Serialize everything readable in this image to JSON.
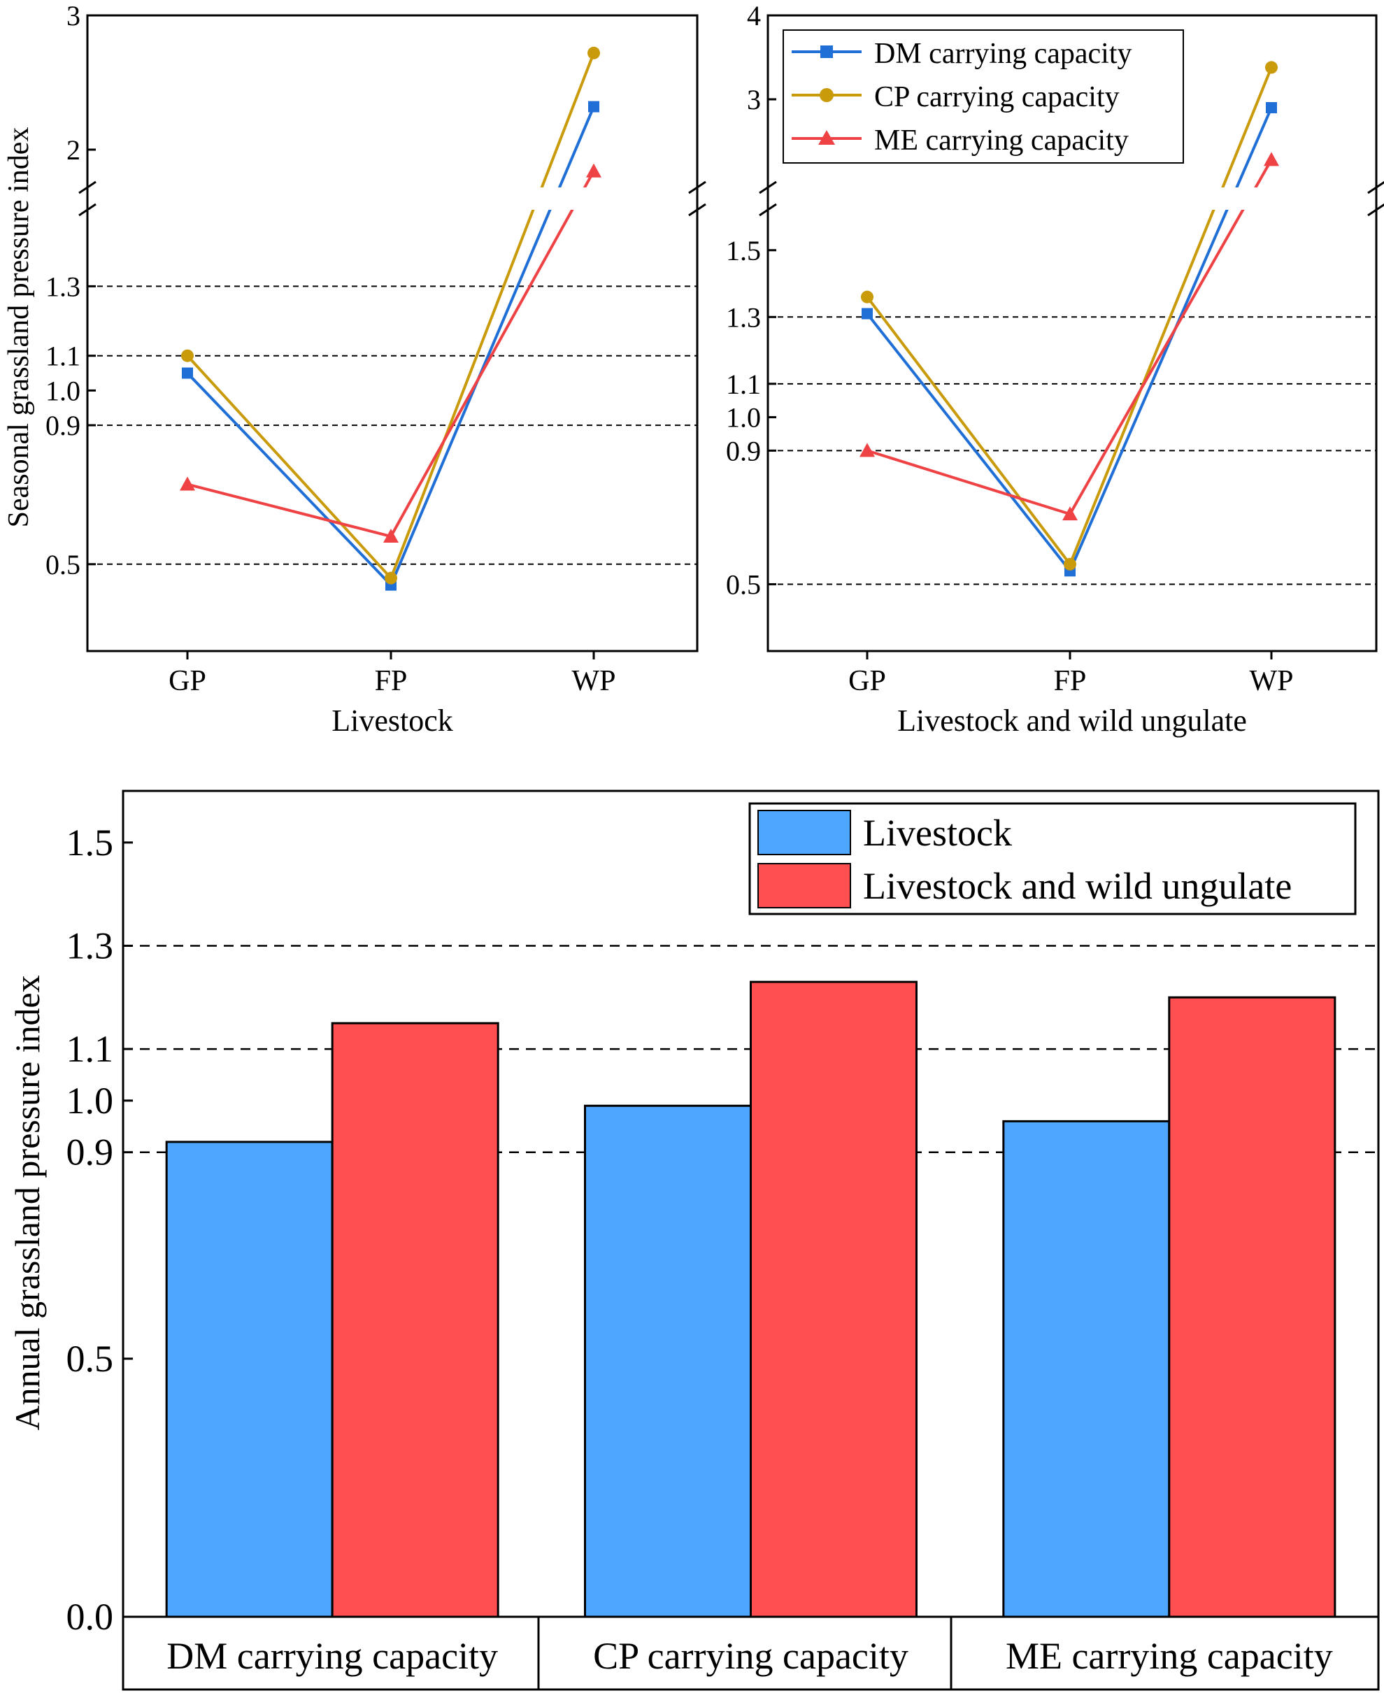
{
  "colors": {
    "dm": "#1f6fd6",
    "cp": "#c99a0a",
    "me": "#ee4244",
    "bar_livestock": "#4ea6ff",
    "bar_wild": "#ff4f51",
    "axis": "#000000",
    "gridline": "#000000"
  },
  "chart_data": [
    {
      "type": "line",
      "ylabel": "Seasonal grassland pressure index",
      "xlabel": "Livestock",
      "categories": [
        "GP",
        "FP",
        "WP"
      ],
      "broken_axis": true,
      "ylim_lower": [
        0.25,
        1.5
      ],
      "ylim_upper": [
        1.5,
        3.0
      ],
      "yticks_lower": [
        "0.5",
        "0.9",
        "1.0",
        "1.1",
        "1.3"
      ],
      "yticks_upper": [
        "2",
        "3"
      ],
      "ref_lines": [
        0.5,
        0.9,
        1.1,
        1.3
      ],
      "grid": false,
      "series": [
        {
          "name": "DM carrying capacity",
          "key": "dm",
          "marker": "square",
          "values": [
            1.05,
            0.44,
            2.32
          ]
        },
        {
          "name": "CP carrying capacity",
          "key": "cp",
          "marker": "circle",
          "values": [
            1.1,
            0.46,
            2.72
          ]
        },
        {
          "name": "ME carrying capacity",
          "key": "me",
          "marker": "triangle",
          "values": [
            0.73,
            0.58,
            1.84
          ]
        }
      ]
    },
    {
      "type": "line",
      "ylabel": "",
      "xlabel": "Livestock and wild ungulate",
      "categories": [
        "GP",
        "FP",
        "WP"
      ],
      "broken_axis": true,
      "ylim_lower": [
        0.3,
        1.6
      ],
      "ylim_upper": [
        1.6,
        4.0
      ],
      "yticks_lower": [
        "0.5",
        "0.9",
        "1.0",
        "1.1",
        "1.3",
        "1.5"
      ],
      "yticks_upper": [
        "3",
        "4"
      ],
      "ref_lines": [
        0.5,
        0.9,
        1.1,
        1.3
      ],
      "grid": false,
      "legend_position": "top-right",
      "series": [
        {
          "name": "DM carrying capacity",
          "key": "dm",
          "marker": "square",
          "values": [
            1.31,
            0.54,
            2.9
          ]
        },
        {
          "name": "CP carrying capacity",
          "key": "cp",
          "marker": "circle",
          "values": [
            1.36,
            0.56,
            3.38
          ]
        },
        {
          "name": "ME carrying capacity",
          "key": "me",
          "marker": "triangle",
          "values": [
            0.9,
            0.71,
            2.28
          ]
        }
      ]
    },
    {
      "type": "bar",
      "ylabel": "Annual grassland pressure index",
      "xlabel": "",
      "categories": [
        "DM carrying capacity",
        "CP carrying capacity",
        "ME carrying capacity"
      ],
      "ylim": [
        0.0,
        1.6
      ],
      "yticks": [
        "0.0",
        "0.5",
        "0.9",
        "1.0",
        "1.1",
        "1.3",
        "1.5"
      ],
      "ref_lines": [
        0.9,
        1.1,
        1.3
      ],
      "grid": false,
      "legend_position": "top-right",
      "series": [
        {
          "name": "Livestock",
          "key": "bar_livestock",
          "values": [
            0.92,
            0.99,
            0.96
          ]
        },
        {
          "name": "Livestock and wild ungulate",
          "key": "bar_wild",
          "values": [
            1.15,
            1.23,
            1.2
          ]
        }
      ]
    }
  ]
}
